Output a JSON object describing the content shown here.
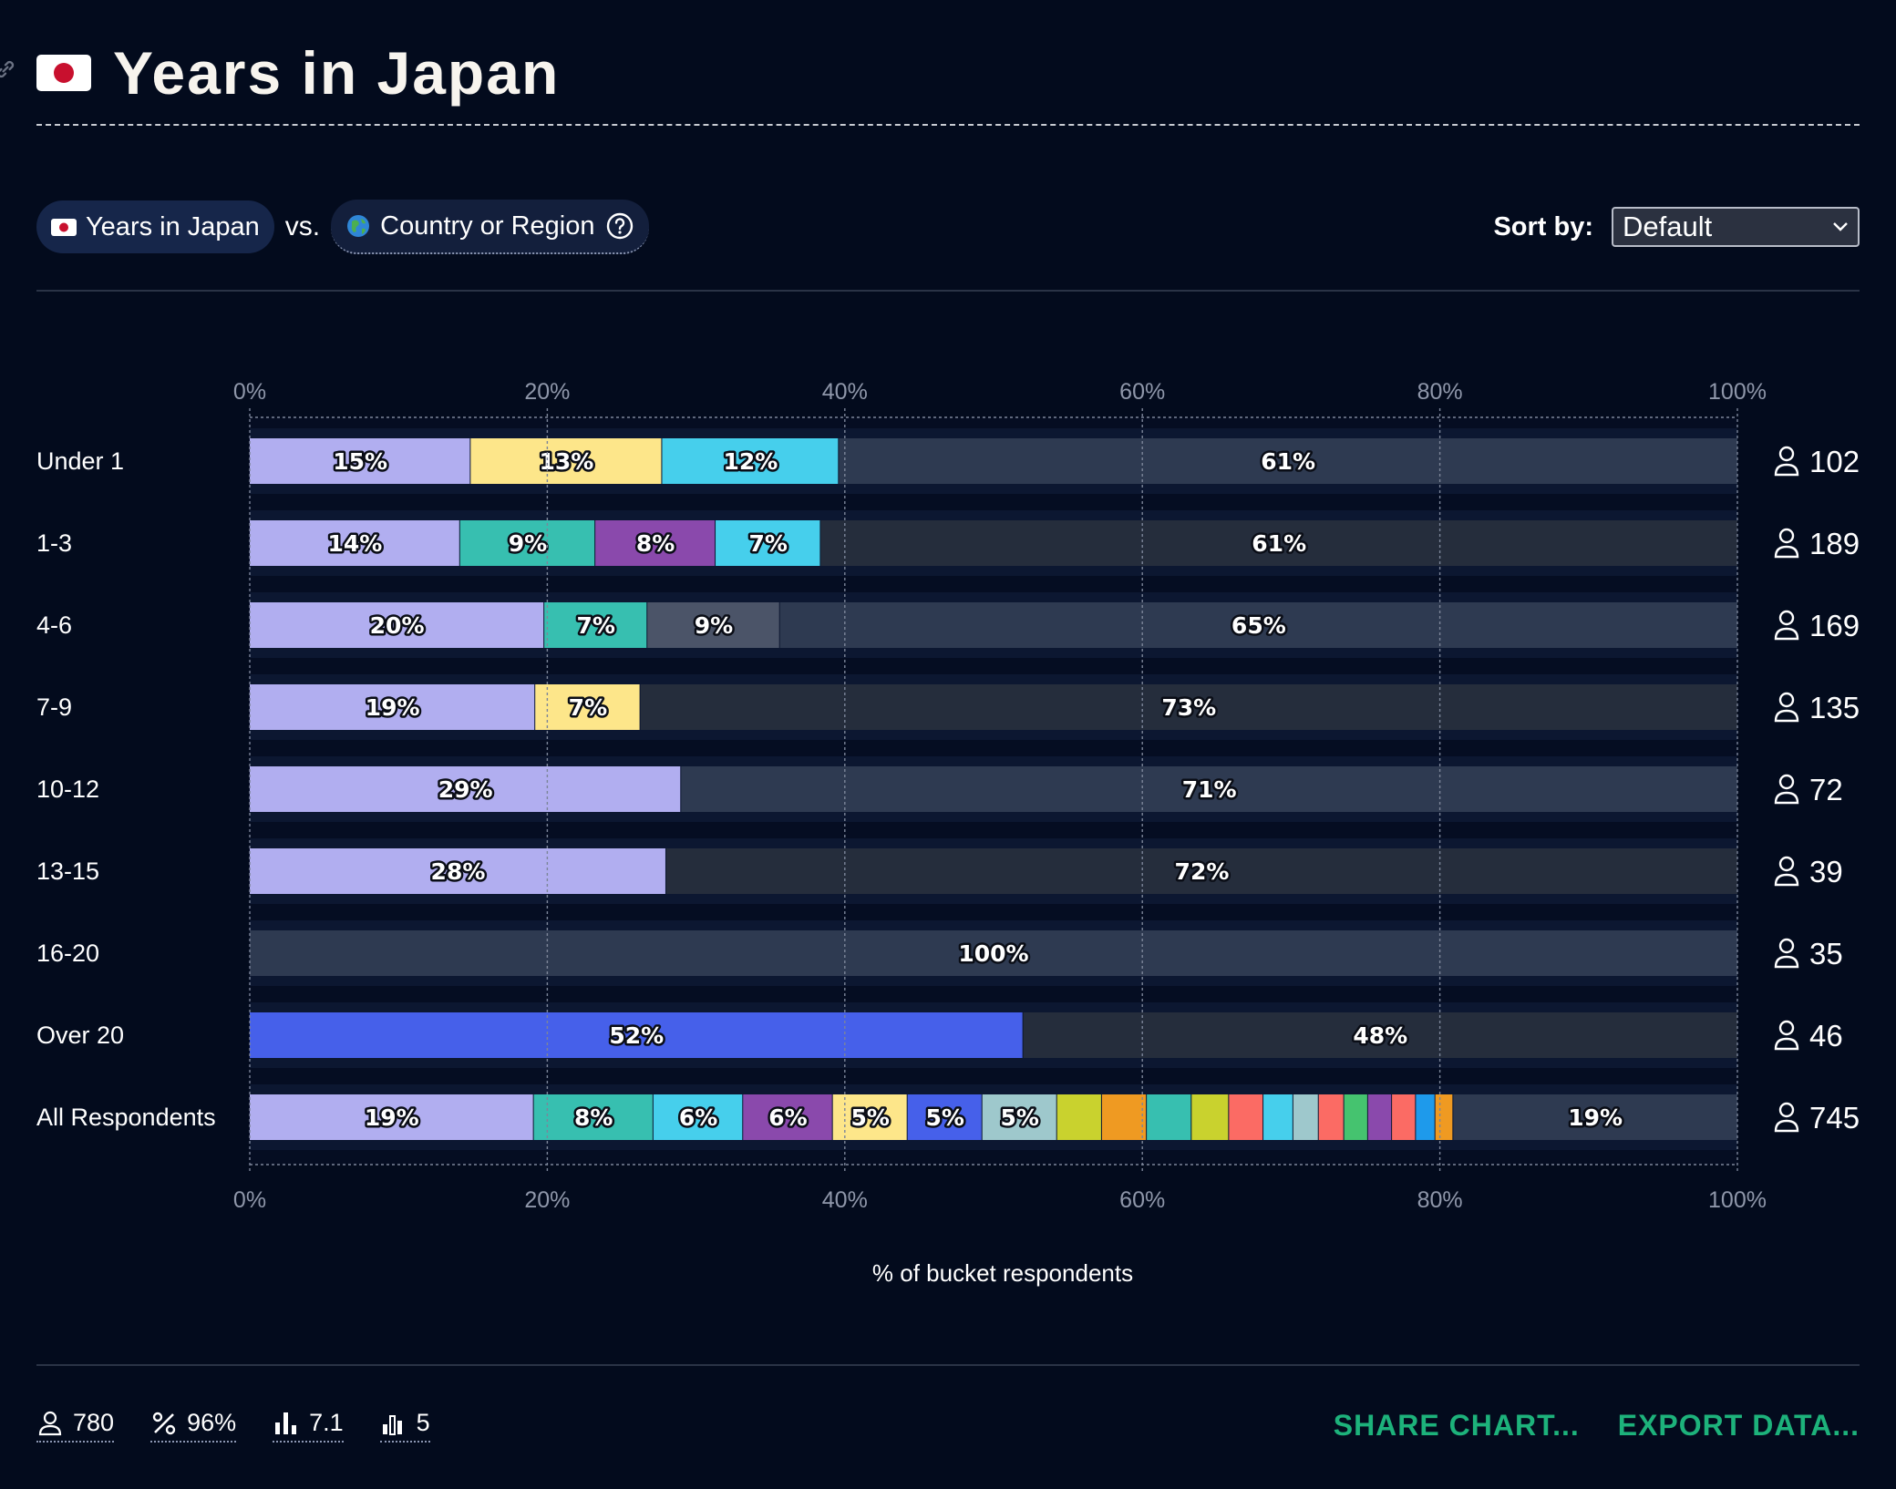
{
  "header": {
    "title": "Years in Japan",
    "icons": {
      "link": "link-icon",
      "flag": "japan-flag-icon"
    }
  },
  "controls": {
    "primary_label": "Years in Japan",
    "vs_label": "vs.",
    "secondary_label": "Country or Region",
    "sort_label": "Sort by:",
    "sort_value": "Default",
    "icons": {
      "globe": "globe-icon",
      "help": "help-circle-icon",
      "chevron": "chevron-down-icon"
    }
  },
  "chart_data": {
    "type": "bar",
    "orientation": "horizontal",
    "stacked": true,
    "xlabel": "% of bucket respondents",
    "xlim": [
      0,
      100
    ],
    "xticks": [
      "0%",
      "20%",
      "40%",
      "60%",
      "80%",
      "100%"
    ],
    "grid": true,
    "label_min_percent": 5,
    "other_color": "#2e3a51",
    "other_color_alt": "#252d3c",
    "rows": [
      {
        "label": "Under 1",
        "count": "102",
        "segments": [
          {
            "value": 15,
            "color": "#b1aef0"
          },
          {
            "value": 13,
            "color": "#fde68a"
          },
          {
            "value": 12,
            "color": "#46cfec"
          },
          {
            "value": 61,
            "other": true
          }
        ]
      },
      {
        "label": "1-3",
        "count": "189",
        "segments": [
          {
            "value": 14,
            "color": "#b1aef0"
          },
          {
            "value": 9,
            "color": "#37bfb0"
          },
          {
            "value": 8,
            "color": "#8a49ac"
          },
          {
            "value": 7,
            "color": "#46cfec"
          },
          {
            "value": 61,
            "other": true
          }
        ]
      },
      {
        "label": "4-6",
        "count": "169",
        "segments": [
          {
            "value": 20,
            "color": "#b1aef0"
          },
          {
            "value": 7,
            "color": "#37bfb0"
          },
          {
            "value": 9,
            "color": "#4b5468"
          },
          {
            "value": 65,
            "other": true
          }
        ]
      },
      {
        "label": "7-9",
        "count": "135",
        "segments": [
          {
            "value": 19,
            "color": "#b1aef0"
          },
          {
            "value": 7,
            "color": "#fde68a"
          },
          {
            "value": 73,
            "other": true
          }
        ]
      },
      {
        "label": "10-12",
        "count": "72",
        "segments": [
          {
            "value": 29,
            "color": "#b1aef0"
          },
          {
            "value": 71,
            "other": true
          }
        ]
      },
      {
        "label": "13-15",
        "count": "39",
        "segments": [
          {
            "value": 28,
            "color": "#b1aef0"
          },
          {
            "value": 72,
            "other": true
          }
        ]
      },
      {
        "label": "16-20",
        "count": "35",
        "segments": [
          {
            "value": 100,
            "other": true
          }
        ]
      },
      {
        "label": "Over 20",
        "count": "46",
        "segments": [
          {
            "value": 52,
            "color": "#4660ea"
          },
          {
            "value": 48,
            "other": true
          }
        ]
      },
      {
        "label": "All Respondents",
        "count": "745",
        "segments": [
          {
            "value": 19,
            "color": "#b1aef0"
          },
          {
            "value": 8,
            "color": "#37bfb0"
          },
          {
            "value": 6,
            "color": "#46cfec"
          },
          {
            "value": 6,
            "color": "#8a49ac"
          },
          {
            "value": 5,
            "color": "#fde68a"
          },
          {
            "value": 5,
            "color": "#4660ea"
          },
          {
            "value": 5,
            "color": "#9ec8cc"
          },
          {
            "value": 3,
            "color": "#c9d22e"
          },
          {
            "value": 3,
            "color": "#ef9a22"
          },
          {
            "value": 3,
            "color": "#37bfb0"
          },
          {
            "value": 2.5,
            "color": "#c9d22e"
          },
          {
            "value": 2.3,
            "color": "#fb6b64"
          },
          {
            "value": 2,
            "color": "#46cfec"
          },
          {
            "value": 1.7,
            "color": "#9ec8cc"
          },
          {
            "value": 1.7,
            "color": "#fb6b64"
          },
          {
            "value": 1.6,
            "color": "#45c36f"
          },
          {
            "value": 1.6,
            "color": "#8a49ac"
          },
          {
            "value": 1.6,
            "color": "#fb6b64"
          },
          {
            "value": 1.3,
            "color": "#1e9aeb"
          },
          {
            "value": 1.2,
            "color": "#ef9a22"
          },
          {
            "value": 19,
            "other": true
          }
        ]
      }
    ]
  },
  "footer": {
    "stats": [
      {
        "icon": "person-icon",
        "value": "780"
      },
      {
        "icon": "percent-icon",
        "value": "96%"
      },
      {
        "icon": "bar-chart-icon",
        "value": "7.1"
      },
      {
        "icon": "bar-chart-small-icon",
        "value": "5"
      }
    ],
    "share_label": "SHARE CHART...",
    "export_label": "EXPORT DATA..."
  }
}
